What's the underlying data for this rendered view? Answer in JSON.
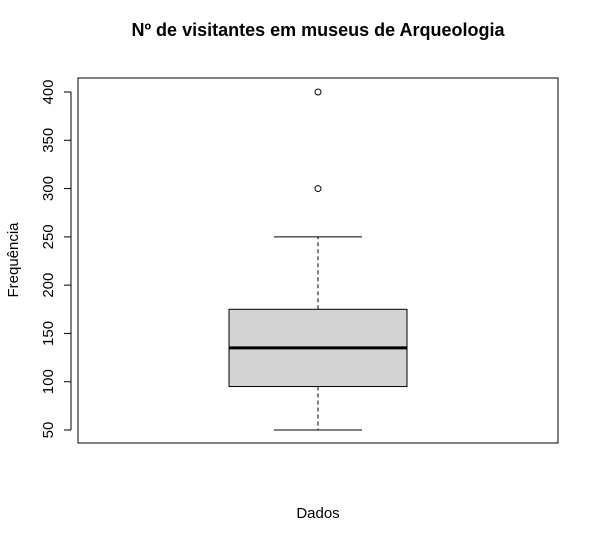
{
  "chart_data": {
    "type": "boxplot",
    "title": "Nº de visitantes em museus de Arqueologia",
    "xlabel": "Dados",
    "ylabel": "Frequência",
    "ylim": [
      45,
      415
    ],
    "y_ticks": [
      50,
      100,
      150,
      200,
      250,
      300,
      350,
      400
    ],
    "y_tick_labels": [
      "50",
      "100",
      "150",
      "200",
      "250",
      "300",
      "350",
      "400"
    ],
    "grid": false,
    "box": {
      "whisker_low": 50,
      "q1": 95,
      "median": 135,
      "q3": 175,
      "whisker_high": 250,
      "outliers": [
        300,
        400
      ]
    },
    "colors": {
      "box_fill": "#d3d3d3",
      "stroke": "#000000"
    }
  }
}
